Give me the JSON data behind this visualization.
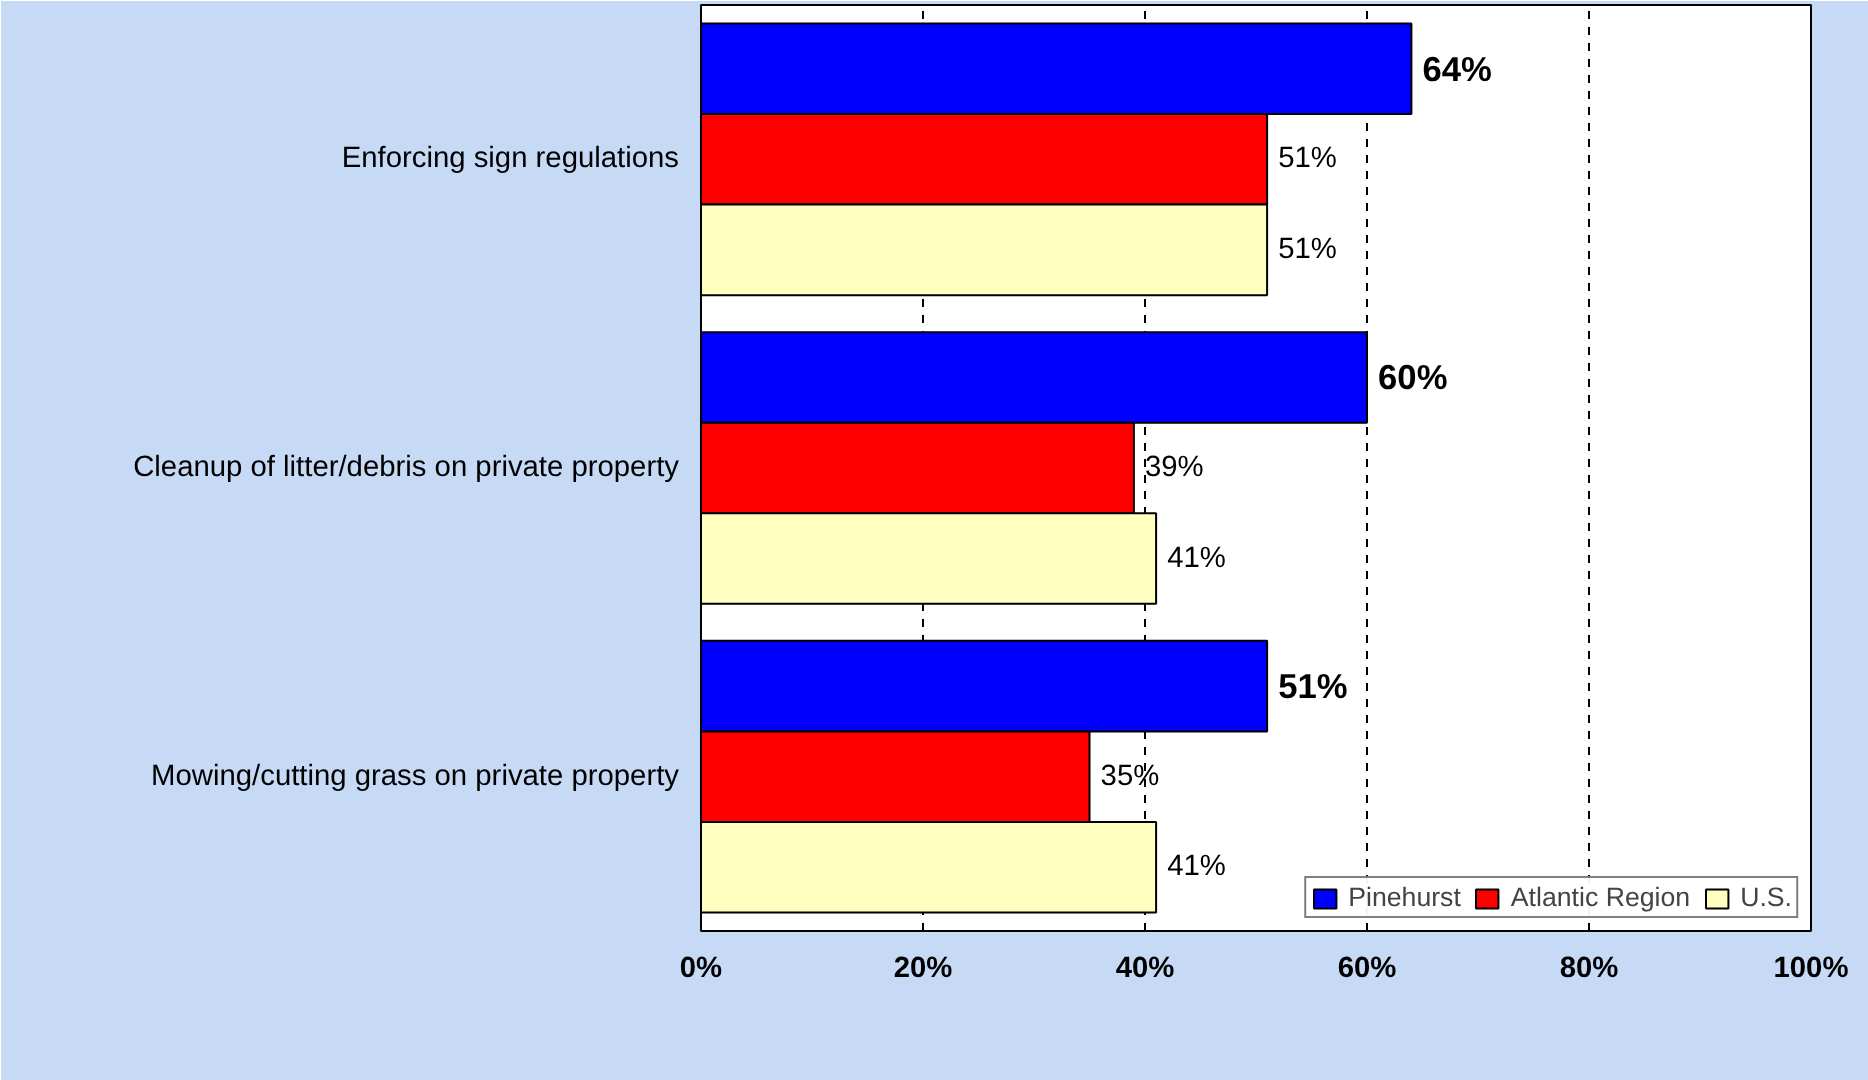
{
  "chart_data": {
    "type": "bar",
    "orientation": "horizontal",
    "categories": [
      "Enforcing sign regulations",
      "Cleanup of litter/debris on private property",
      "Mowing/cutting grass on private property"
    ],
    "series": [
      {
        "name": "Pinehurst",
        "color": "#0000ff",
        "values": [
          64,
          60,
          51
        ],
        "value_labels": [
          "64%",
          "60%",
          "51%"
        ]
      },
      {
        "name": "Atlantic Region",
        "color": "#ff0000",
        "values": [
          51,
          39,
          35
        ],
        "value_labels": [
          "51%",
          "39%",
          "35%"
        ]
      },
      {
        "name": "U.S.",
        "color": "#ffffc0",
        "values": [
          51,
          41,
          41
        ],
        "value_labels": [
          "51%",
          "41%",
          "41%"
        ]
      }
    ],
    "xlim": [
      0,
      100
    ],
    "xticks": [
      {
        "value": 0,
        "label": "0%"
      },
      {
        "value": 20,
        "label": "20%"
      },
      {
        "value": 40,
        "label": "40%"
      },
      {
        "value": 60,
        "label": "60%"
      },
      {
        "value": 80,
        "label": "80%"
      },
      {
        "value": 100,
        "label": "100%"
      }
    ],
    "grid": "x",
    "legend": "bottom right"
  }
}
